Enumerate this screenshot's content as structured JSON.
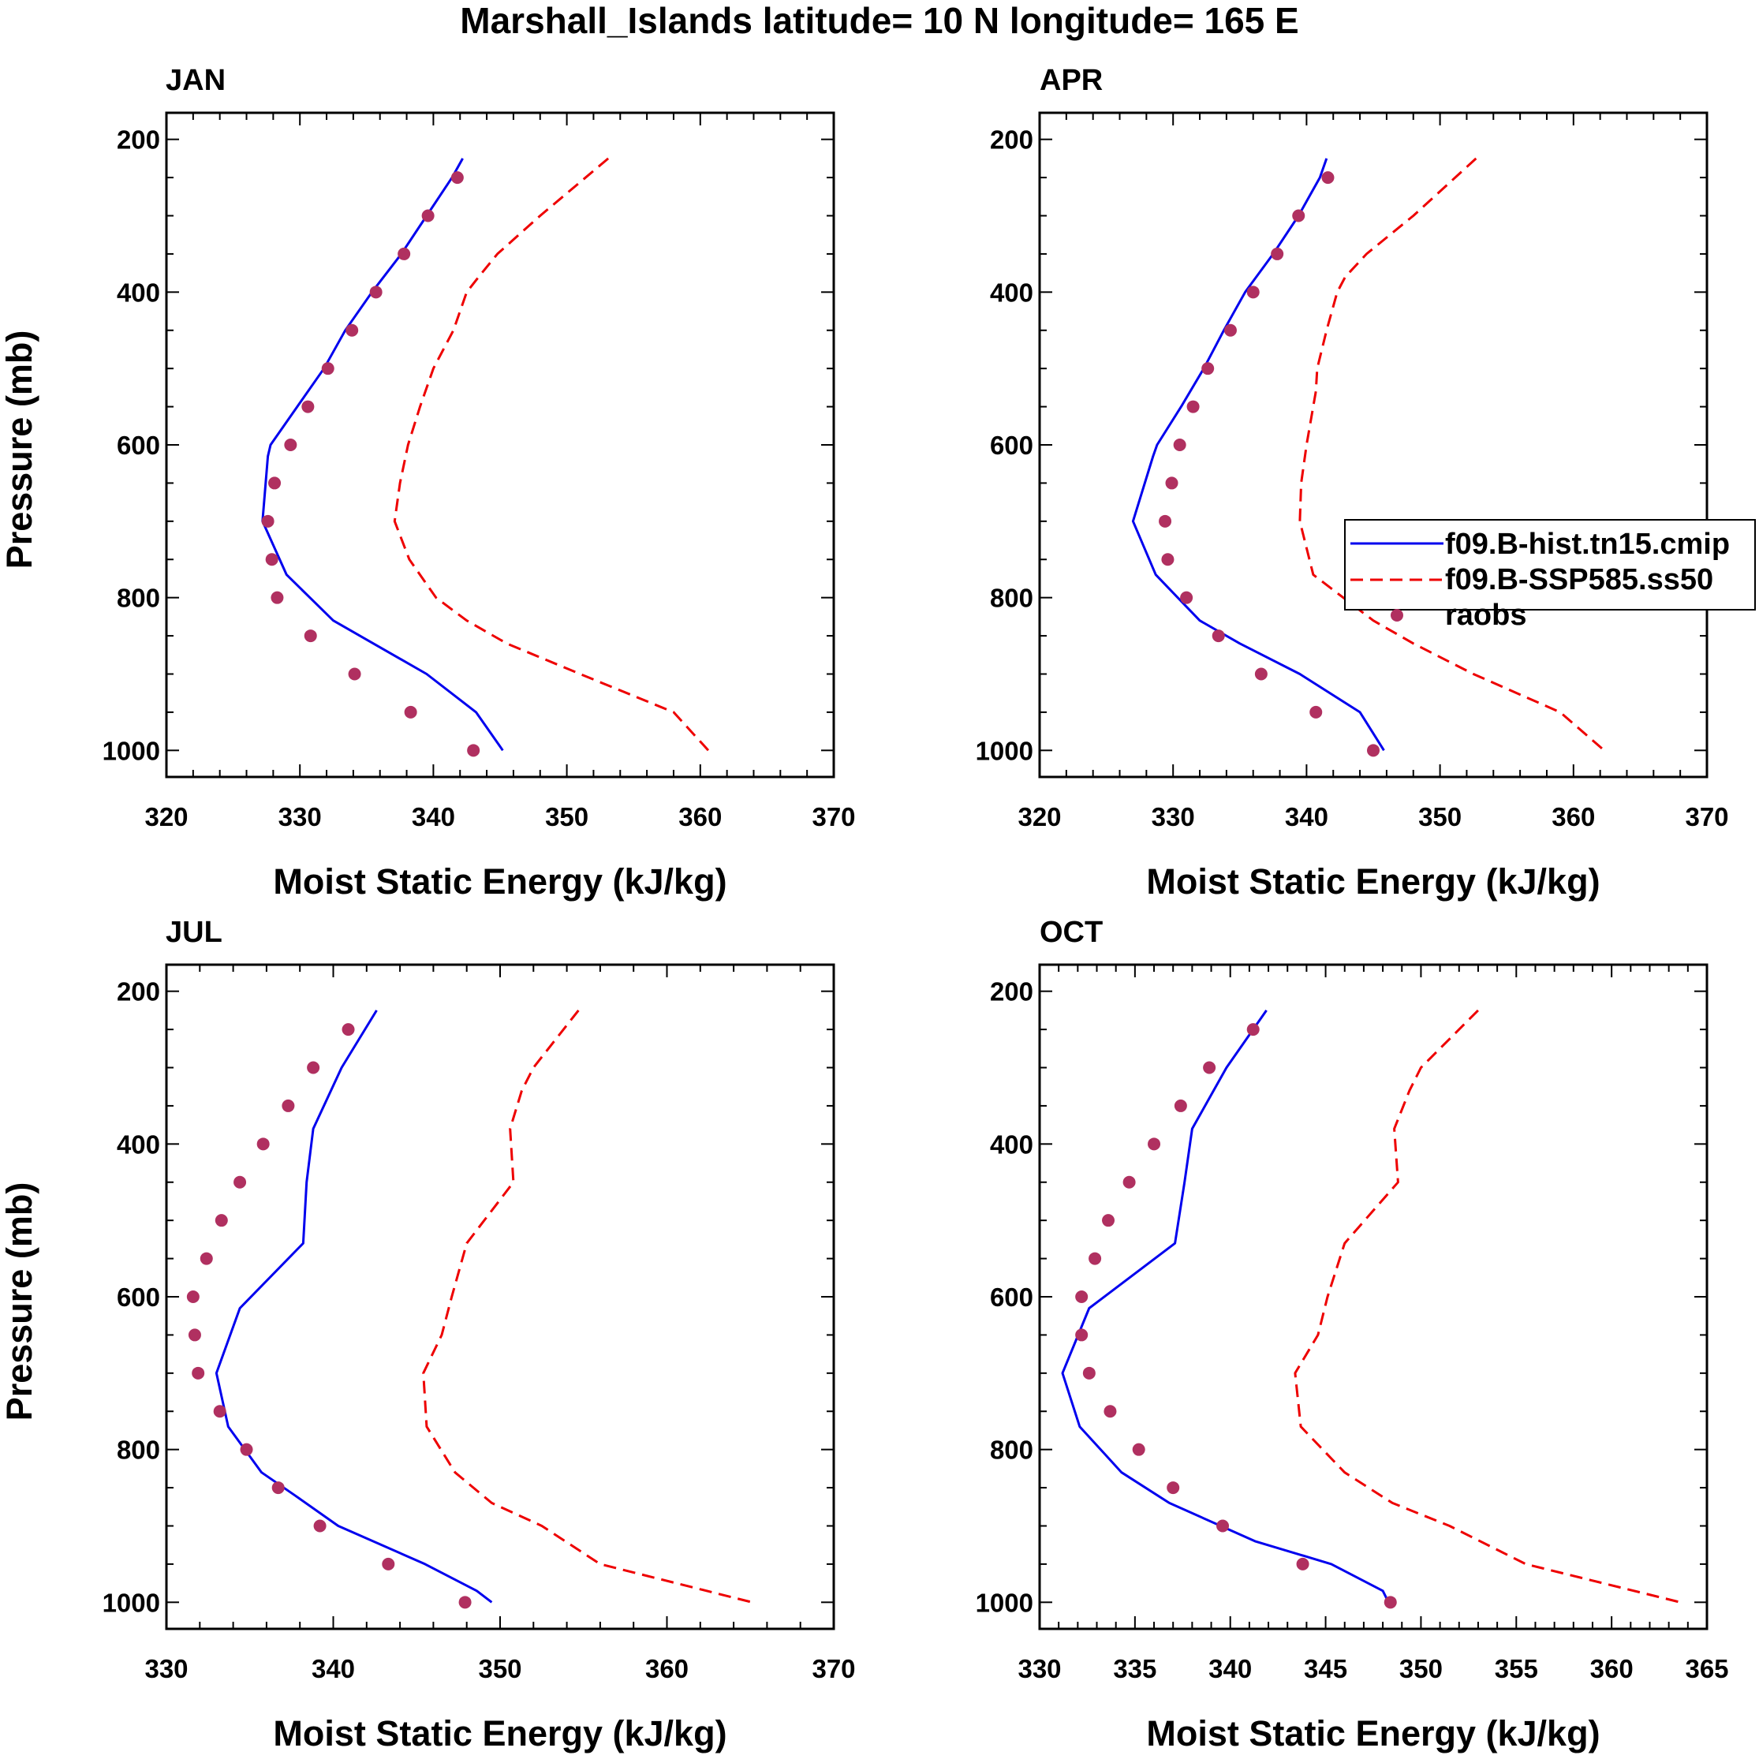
{
  "title": "Marshall_Islands  latitude= 10 N longitude= 165 E",
  "colors": {
    "hist": "#0000ee",
    "ssp": "#ee0000",
    "raobs": "#b03060",
    "axis": "#000000"
  },
  "chart_data": [
    {
      "type": "line",
      "panel": "JAN",
      "xlabel": "Moist Static Energy (kJ/kg)",
      "ylabel": "Pressure (mb)",
      "xlim": [
        320,
        370
      ],
      "xticks": [
        320,
        330,
        340,
        350,
        360,
        370
      ],
      "ylim": [
        200,
        1000
      ],
      "yticks": [
        200,
        400,
        600,
        800,
        1000
      ],
      "y_reversed": true,
      "series": [
        {
          "name": "f09.B-hist.tn15.cmip",
          "style": "solid",
          "pressure": [
            225,
            250,
            300,
            350,
            400,
            450,
            500,
            550,
            600,
            615,
            700,
            770,
            830,
            860,
            900,
            950,
            1000
          ],
          "values": [
            342.2,
            341.4,
            339.5,
            337.6,
            335.4,
            333.4,
            331.8,
            329.8,
            327.8,
            327.6,
            327.2,
            329.0,
            332.5,
            335.5,
            339.5,
            343.2,
            345.2
          ]
        },
        {
          "name": "f09.B-SSP585.ss50",
          "style": "dashed",
          "pressure": [
            225,
            300,
            350,
            380,
            400,
            450,
            500,
            550,
            600,
            650,
            700,
            750,
            800,
            830,
            860,
            900,
            950,
            1000
          ],
          "values": [
            353.1,
            348.0,
            344.8,
            343.4,
            342.5,
            341.5,
            340.0,
            339.0,
            338.1,
            337.5,
            337.1,
            338.2,
            340.2,
            342.5,
            345.5,
            351.0,
            358.0,
            360.6
          ]
        },
        {
          "name": "raobs",
          "style": "points",
          "pressure": [
            250,
            300,
            350,
            400,
            450,
            500,
            550,
            600,
            650,
            700,
            750,
            800,
            850,
            900,
            950,
            1000
          ],
          "values": [
            341.8,
            339.6,
            337.8,
            335.7,
            333.9,
            332.1,
            330.6,
            329.3,
            328.1,
            327.6,
            327.9,
            328.3,
            330.8,
            334.1,
            338.3,
            343.0
          ]
        }
      ]
    },
    {
      "type": "line",
      "panel": "APR",
      "xlabel": "Moist Static Energy (kJ/kg)",
      "ylabel": "",
      "xlim": [
        320,
        370
      ],
      "xticks": [
        320,
        330,
        340,
        350,
        360,
        370
      ],
      "ylim": [
        200,
        1000
      ],
      "yticks": [
        200,
        400,
        600,
        800,
        1000
      ],
      "y_reversed": true,
      "legend": [
        "f09.B-hist.tn15.cmip",
        "f09.B-SSP585.ss50",
        "raobs"
      ],
      "series": [
        {
          "name": "f09.B-hist.tn15.cmip",
          "style": "solid",
          "pressure": [
            225,
            250,
            300,
            350,
            400,
            450,
            500,
            550,
            600,
            615,
            700,
            770,
            830,
            860,
            900,
            950,
            1000
          ],
          "values": [
            341.5,
            341.0,
            339.4,
            337.5,
            335.4,
            333.8,
            332.3,
            330.6,
            328.8,
            328.5,
            327.0,
            328.7,
            332.0,
            335.0,
            339.5,
            344.0,
            345.8
          ]
        },
        {
          "name": "f09.B-SSP585.ss50",
          "style": "dashed",
          "pressure": [
            225,
            300,
            350,
            380,
            400,
            450,
            500,
            530,
            600,
            650,
            700,
            770,
            830,
            860,
            900,
            950,
            1000
          ],
          "values": [
            352.7,
            348.0,
            344.5,
            342.9,
            342.3,
            341.5,
            340.8,
            340.7,
            340.0,
            339.6,
            339.5,
            340.5,
            345.0,
            348.0,
            352.5,
            359.0,
            362.3
          ]
        },
        {
          "name": "raobs",
          "style": "points",
          "pressure": [
            250,
            300,
            350,
            400,
            450,
            500,
            550,
            600,
            650,
            700,
            750,
            800,
            850,
            900,
            950,
            1000
          ],
          "values": [
            341.6,
            339.4,
            337.8,
            336.0,
            334.3,
            332.6,
            331.5,
            330.5,
            329.9,
            329.4,
            329.6,
            331.0,
            333.4,
            336.6,
            340.7,
            345.0
          ]
        }
      ]
    },
    {
      "type": "line",
      "panel": "JUL",
      "xlabel": "Moist Static Energy (kJ/kg)",
      "ylabel": "Pressure (mb)",
      "xlim": [
        330,
        370
      ],
      "xticks": [
        330,
        340,
        350,
        360,
        370
      ],
      "ylim": [
        200,
        1000
      ],
      "yticks": [
        200,
        400,
        600,
        800,
        1000
      ],
      "y_reversed": true,
      "series": [
        {
          "name": "f09.B-hist.tn15.cmip",
          "style": "solid",
          "pressure": [
            225,
            300,
            380,
            450,
            530,
            615,
            700,
            770,
            830,
            860,
            900,
            950,
            985,
            1000
          ],
          "values": [
            342.6,
            340.5,
            338.8,
            338.4,
            338.2,
            334.4,
            333.0,
            333.7,
            335.7,
            337.7,
            340.3,
            345.5,
            348.6,
            349.5
          ]
        },
        {
          "name": "f09.B-SSP585.ss50",
          "style": "dashed",
          "pressure": [
            225,
            300,
            330,
            380,
            450,
            530,
            600,
            650,
            700,
            770,
            830,
            870,
            900,
            950,
            1000
          ],
          "values": [
            354.7,
            352.0,
            351.3,
            350.6,
            350.8,
            348.0,
            347.1,
            346.5,
            345.4,
            345.6,
            347.3,
            349.5,
            352.5,
            356.0,
            365.1
          ]
        },
        {
          "name": "raobs",
          "style": "points",
          "pressure": [
            250,
            300,
            350,
            400,
            450,
            500,
            550,
            600,
            650,
            700,
            750,
            800,
            850,
            900,
            950,
            1000
          ],
          "values": [
            340.9,
            338.8,
            337.3,
            335.8,
            334.4,
            333.3,
            332.4,
            331.6,
            331.7,
            331.9,
            333.2,
            334.8,
            336.7,
            339.2,
            343.3,
            347.9
          ]
        }
      ]
    },
    {
      "type": "line",
      "panel": "OCT",
      "xlabel": "Moist Static Energy (kJ/kg)",
      "ylabel": "",
      "xlim": [
        330,
        365
      ],
      "xticks": [
        330,
        335,
        340,
        345,
        350,
        355,
        360,
        365
      ],
      "ylim": [
        200,
        1000
      ],
      "yticks": [
        200,
        400,
        600,
        800,
        1000
      ],
      "y_reversed": true,
      "series": [
        {
          "name": "f09.B-hist.tn15.cmip",
          "style": "solid",
          "pressure": [
            225,
            300,
            380,
            450,
            530,
            615,
            700,
            770,
            830,
            870,
            900,
            920,
            950,
            985,
            1000
          ],
          "values": [
            341.9,
            339.8,
            338.0,
            337.6,
            337.1,
            332.6,
            331.2,
            332.1,
            334.3,
            336.8,
            339.5,
            341.3,
            345.3,
            348.0,
            348.3
          ]
        },
        {
          "name": "f09.B-SSP585.ss50",
          "style": "dashed",
          "pressure": [
            225,
            300,
            330,
            380,
            450,
            530,
            600,
            650,
            700,
            770,
            830,
            870,
            900,
            950,
            1000
          ],
          "values": [
            353.0,
            350.0,
            349.4,
            348.6,
            348.8,
            346.0,
            345.1,
            344.6,
            343.4,
            343.7,
            346.0,
            348.5,
            351.5,
            355.5,
            363.6
          ]
        },
        {
          "name": "raobs",
          "style": "points",
          "pressure": [
            250,
            300,
            350,
            400,
            450,
            500,
            550,
            600,
            650,
            700,
            750,
            800,
            850,
            900,
            950,
            1000
          ],
          "values": [
            341.2,
            338.9,
            337.4,
            336.0,
            334.7,
            333.6,
            332.9,
            332.2,
            332.2,
            332.6,
            333.7,
            335.2,
            337.0,
            339.6,
            343.8,
            348.4
          ]
        }
      ]
    }
  ]
}
